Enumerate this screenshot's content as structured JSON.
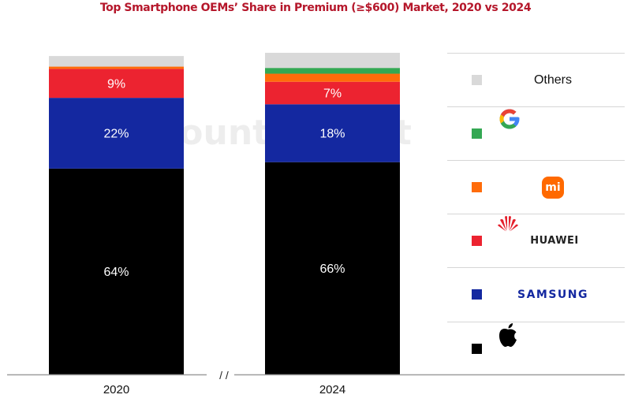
{
  "chart_data": {
    "type": "bar",
    "stacked": true,
    "title": "Top Smartphone OEMs’ Share in Premium (≥$600) Market, 2020 vs 2024",
    "xlabel": "",
    "ylabel": "",
    "ylim": [
      0,
      100
    ],
    "unit": "%",
    "categories": [
      "2020",
      "2024"
    ],
    "axis_break_label": "/ /",
    "watermark": "Counterpoint",
    "legend_position": "right",
    "series": [
      {
        "name": "Apple",
        "color": "#000000",
        "values": [
          64,
          66
        ],
        "labels": [
          "64%",
          "66%"
        ],
        "legend_icon": "apple-logo-icon"
      },
      {
        "name": "Samsung",
        "color": "#1428a0",
        "values": [
          22,
          18
        ],
        "labels": [
          "22%",
          "18%"
        ],
        "legend_text": "SAMSUNG"
      },
      {
        "name": "Huawei",
        "color": "#ec2330",
        "values": [
          9,
          7
        ],
        "labels": [
          "9%",
          "7%"
        ],
        "legend_text": "HUAWEI",
        "legend_icon": "huawei-logo-icon"
      },
      {
        "name": "Xiaomi",
        "color": "#ff6c0a",
        "values": [
          0.7,
          2.5
        ],
        "labels": [
          "",
          ""
        ],
        "legend_text": "mi",
        "legend_icon": "xiaomi-logo-icon"
      },
      {
        "name": "Google",
        "color": "#34a853",
        "values": [
          0,
          1.8
        ],
        "labels": [
          "",
          ""
        ],
        "legend_text": "G",
        "legend_icon": "google-logo-icon"
      },
      {
        "name": "Others",
        "color": "#d9d9d9",
        "values": [
          3.3,
          4.7
        ],
        "labels": [
          "",
          ""
        ],
        "legend_text": "Others"
      }
    ]
  }
}
